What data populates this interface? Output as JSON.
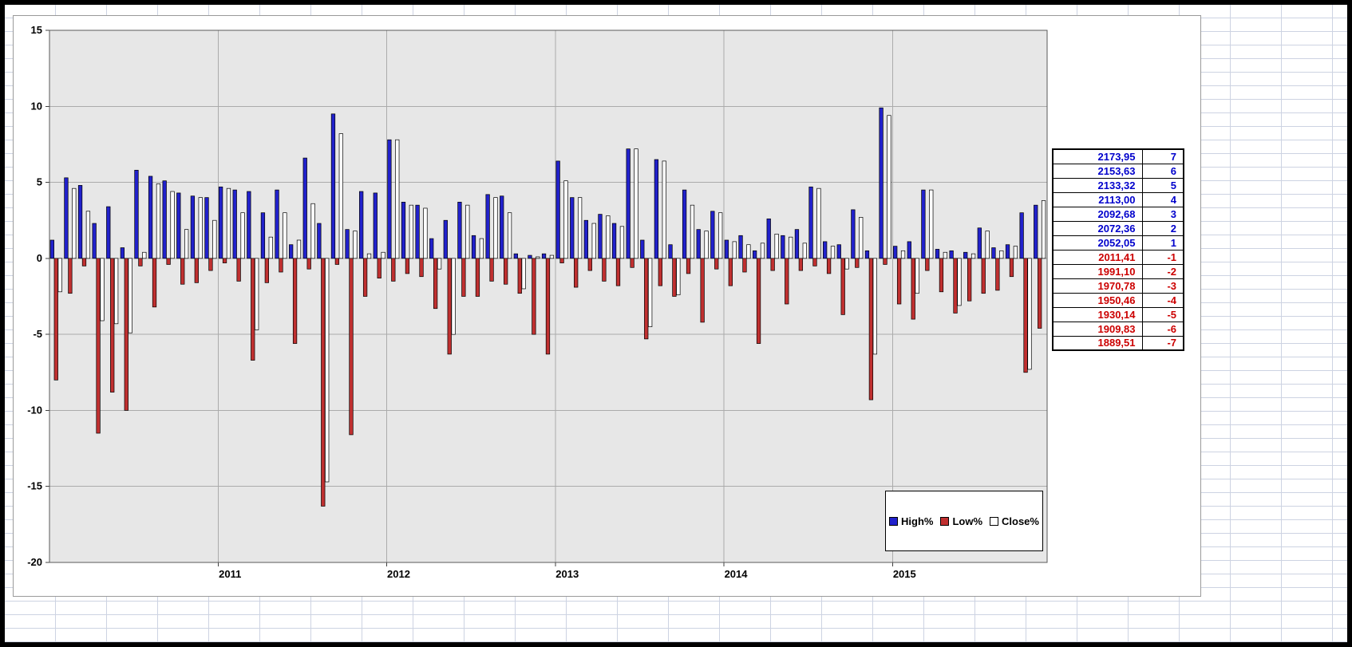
{
  "chart_data": {
    "type": "bar",
    "title": "",
    "xlabel": "",
    "ylabel": "",
    "ylim": [
      -20,
      15
    ],
    "yticks": [
      15,
      10,
      5,
      0,
      -5,
      -10,
      -15,
      -20
    ],
    "grid": true,
    "legend_position": "bottom-right-inside",
    "plot_bg": "#e7e7e7",
    "gridline_color": "#ababab",
    "plot_border_color": "#595959",
    "x": [
      "2010-01",
      "2010-02",
      "2010-03",
      "2010-04",
      "2010-05",
      "2010-06",
      "2010-07",
      "2010-08",
      "2010-09",
      "2010-10",
      "2010-11",
      "2010-12",
      "2011-01",
      "2011-02",
      "2011-03",
      "2011-04",
      "2011-05",
      "2011-06",
      "2011-07",
      "2011-08",
      "2011-09",
      "2011-10",
      "2011-11",
      "2011-12",
      "2012-01",
      "2012-02",
      "2012-03",
      "2012-04",
      "2012-05",
      "2012-06",
      "2012-07",
      "2012-08",
      "2012-09",
      "2012-10",
      "2012-11",
      "2012-12",
      "2013-01",
      "2013-02",
      "2013-03",
      "2013-04",
      "2013-05",
      "2013-06",
      "2013-07",
      "2013-08",
      "2013-09",
      "2013-10",
      "2013-11",
      "2013-12",
      "2014-01",
      "2014-02",
      "2014-03",
      "2014-04",
      "2014-05",
      "2014-06",
      "2014-07",
      "2014-08",
      "2014-09",
      "2014-10",
      "2014-11",
      "2014-12",
      "2015-01",
      "2015-02",
      "2015-03",
      "2015-04",
      "2015-05",
      "2015-06",
      "2015-07",
      "2015-08",
      "2015-09",
      "2015-10",
      "2015-11"
    ],
    "series": [
      {
        "name": "High%",
        "color": "#2121cc",
        "values": [
          1.2,
          5.3,
          4.8,
          2.3,
          3.4,
          0.7,
          5.8,
          5.4,
          5.1,
          4.3,
          4.1,
          4.0,
          4.7,
          4.5,
          4.4,
          3.0,
          4.5,
          0.9,
          6.6,
          2.3,
          9.5,
          1.9,
          4.4,
          4.3,
          7.8,
          3.7,
          3.5,
          1.3,
          2.5,
          3.7,
          1.5,
          4.2,
          4.1,
          0.3,
          0.2,
          0.3,
          6.4,
          4.0,
          2.5,
          2.9,
          2.3,
          7.2,
          1.2,
          6.5,
          0.9,
          4.5,
          1.9,
          3.1,
          1.2,
          1.5,
          0.5,
          2.6,
          1.5,
          1.9,
          4.7,
          1.1,
          0.9,
          3.2,
          0.5,
          9.9,
          0.8,
          1.1,
          4.5,
          0.6,
          0.5,
          0.4,
          2.0,
          0.7,
          0.9,
          3.0,
          3.5
        ]
      },
      {
        "name": "Low%",
        "color": "#c03030",
        "values": [
          -8.0,
          -2.3,
          -0.5,
          -11.5,
          -8.8,
          -10.0,
          -0.5,
          -3.2,
          -0.4,
          -1.7,
          -1.6,
          -0.8,
          -0.3,
          -1.5,
          -6.7,
          -1.6,
          -0.9,
          -5.6,
          -0.7,
          -16.3,
          -0.4,
          -11.6,
          -2.5,
          -1.3,
          -1.5,
          -1.0,
          -1.2,
          -3.3,
          -6.3,
          -2.5,
          -2.5,
          -1.5,
          -1.7,
          -2.3,
          -5.0,
          -6.3,
          -0.3,
          -1.9,
          -0.8,
          -1.5,
          -1.8,
          -0.6,
          -5.3,
          -1.8,
          -2.5,
          -1.0,
          -4.2,
          -0.7,
          -1.8,
          -0.9,
          -5.6,
          -0.8,
          -3.0,
          -0.8,
          -0.5,
          -1.0,
          -3.7,
          -0.6,
          -9.3,
          -0.4,
          -3.0,
          -4.0,
          -0.8,
          -2.2,
          -3.6,
          -2.8,
          -2.3,
          -2.1,
          -1.2,
          -7.5,
          -4.6
        ]
      },
      {
        "name": "Close%",
        "color": "#ffffff",
        "values": [
          -2.2,
          4.6,
          3.1,
          -4.1,
          -4.3,
          -4.9,
          0.4,
          4.9,
          4.4,
          1.9,
          4.0,
          2.5,
          4.6,
          3.0,
          -4.7,
          1.4,
          3.0,
          1.2,
          3.6,
          -14.7,
          8.2,
          1.8,
          0.3,
          0.4,
          7.8,
          3.5,
          3.3,
          -0.7,
          -5.0,
          3.5,
          1.3,
          4.0,
          3.0,
          -2.0,
          0.1,
          0.2,
          5.1,
          4.0,
          2.3,
          2.8,
          2.1,
          7.2,
          -4.5,
          6.4,
          -2.4,
          3.5,
          1.8,
          3.0,
          1.1,
          0.9,
          1.0,
          1.6,
          1.4,
          1.0,
          4.6,
          0.8,
          -0.7,
          2.7,
          -6.3,
          9.4,
          0.5,
          -2.3,
          4.5,
          0.4,
          -3.1,
          0.3,
          1.8,
          0.5,
          0.8,
          -7.3,
          3.8
        ]
      }
    ],
    "year_labels": [
      {
        "label": "2011",
        "boundary_index": 12
      },
      {
        "label": "2012",
        "boundary_index": 24
      },
      {
        "label": "2013",
        "boundary_index": 36
      },
      {
        "label": "2014",
        "boundary_index": 48
      },
      {
        "label": "2015",
        "boundary_index": 60
      }
    ]
  },
  "legend": {
    "items": [
      {
        "label": "High%",
        "color": "#2121cc"
      },
      {
        "label": "Low%",
        "color": "#c03030"
      },
      {
        "label": "Close%",
        "color": "#ffffff"
      }
    ]
  },
  "price_table": {
    "positive_color": "#0000cc",
    "negative_color": "#cc0000",
    "rows": [
      {
        "price": "2173,95",
        "level": "7",
        "tone": "positive"
      },
      {
        "price": "2153,63",
        "level": "6",
        "tone": "positive"
      },
      {
        "price": "2133,32",
        "level": "5",
        "tone": "positive"
      },
      {
        "price": "2113,00",
        "level": "4",
        "tone": "positive"
      },
      {
        "price": "2092,68",
        "level": "3",
        "tone": "positive"
      },
      {
        "price": "2072,36",
        "level": "2",
        "tone": "positive"
      },
      {
        "price": "2052,05",
        "level": "1",
        "tone": "positive"
      },
      {
        "price": "2011,41",
        "level": "-1",
        "tone": "negative"
      },
      {
        "price": "1991,10",
        "level": "-2",
        "tone": "negative"
      },
      {
        "price": "1970,78",
        "level": "-3",
        "tone": "negative"
      },
      {
        "price": "1950,46",
        "level": "-4",
        "tone": "negative"
      },
      {
        "price": "1930,14",
        "level": "-5",
        "tone": "negative"
      },
      {
        "price": "1909,83",
        "level": "-6",
        "tone": "negative"
      },
      {
        "price": "1889,51",
        "level": "-7",
        "tone": "negative"
      }
    ]
  }
}
